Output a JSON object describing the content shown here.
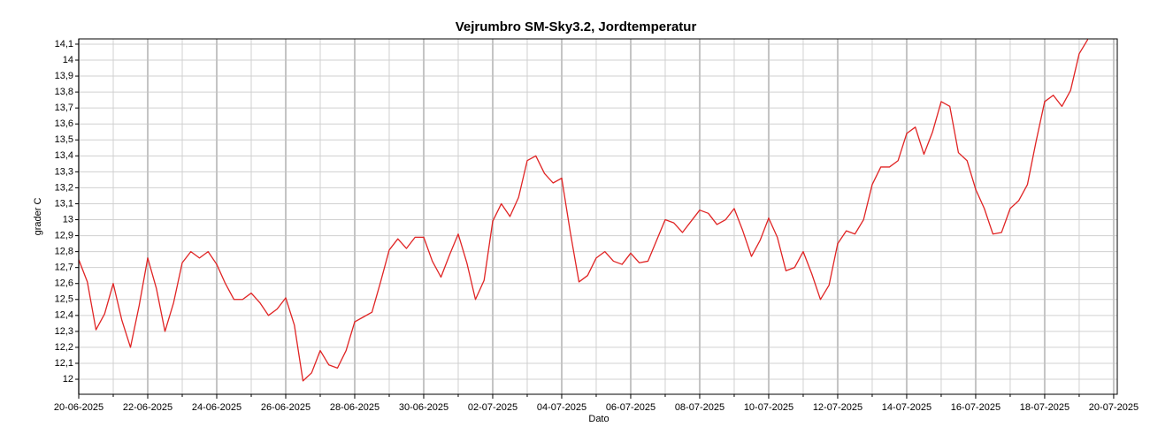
{
  "chart_data": {
    "type": "line",
    "title": "Vejrumbro SM-Sky3.2, Jordtemperatur",
    "x_label": "Dato",
    "y_label": "grader C",
    "x": [
      "2025-06-20 00:00",
      "2025-06-20 06:00",
      "2025-06-20 12:00",
      "2025-06-20 18:00",
      "2025-06-21 00:00",
      "2025-06-21 06:00",
      "2025-06-21 12:00",
      "2025-06-21 18:00",
      "2025-06-22 00:00",
      "2025-06-22 06:00",
      "2025-06-22 12:00",
      "2025-06-22 18:00",
      "2025-06-23 00:00",
      "2025-06-23 06:00",
      "2025-06-23 12:00",
      "2025-06-23 18:00",
      "2025-06-24 00:00",
      "2025-06-24 06:00",
      "2025-06-24 12:00",
      "2025-06-24 18:00",
      "2025-06-25 00:00",
      "2025-06-25 06:00",
      "2025-06-25 12:00",
      "2025-06-25 18:00",
      "2025-06-26 00:00",
      "2025-06-26 06:00",
      "2025-06-26 12:00",
      "2025-06-26 18:00",
      "2025-06-27 00:00",
      "2025-06-27 06:00",
      "2025-06-27 12:00",
      "2025-06-27 18:00",
      "2025-06-28 00:00",
      "2025-06-28 06:00",
      "2025-06-28 12:00",
      "2025-06-28 18:00",
      "2025-06-29 00:00",
      "2025-06-29 06:00",
      "2025-06-29 12:00",
      "2025-06-29 18:00",
      "2025-06-30 00:00",
      "2025-06-30 06:00",
      "2025-06-30 12:00",
      "2025-06-30 18:00",
      "2025-07-01 00:00",
      "2025-07-01 06:00",
      "2025-07-01 12:00",
      "2025-07-01 18:00",
      "2025-07-02 00:00",
      "2025-07-02 06:00",
      "2025-07-02 12:00",
      "2025-07-02 18:00",
      "2025-07-03 00:00",
      "2025-07-03 06:00",
      "2025-07-03 12:00",
      "2025-07-03 18:00",
      "2025-07-04 00:00",
      "2025-07-04 06:00",
      "2025-07-04 12:00",
      "2025-07-04 18:00",
      "2025-07-05 00:00",
      "2025-07-05 06:00",
      "2025-07-05 12:00",
      "2025-07-05 18:00",
      "2025-07-06 00:00",
      "2025-07-06 06:00",
      "2025-07-06 12:00",
      "2025-07-06 18:00",
      "2025-07-07 00:00",
      "2025-07-07 06:00",
      "2025-07-07 12:00",
      "2025-07-07 18:00",
      "2025-07-08 00:00",
      "2025-07-08 06:00",
      "2025-07-08 12:00",
      "2025-07-08 18:00",
      "2025-07-09 00:00",
      "2025-07-09 06:00",
      "2025-07-09 12:00",
      "2025-07-09 18:00",
      "2025-07-10 00:00",
      "2025-07-10 06:00",
      "2025-07-10 12:00",
      "2025-07-10 18:00",
      "2025-07-11 00:00",
      "2025-07-11 06:00",
      "2025-07-11 12:00",
      "2025-07-11 18:00",
      "2025-07-12 00:00",
      "2025-07-12 06:00",
      "2025-07-12 12:00",
      "2025-07-12 18:00",
      "2025-07-13 00:00",
      "2025-07-13 06:00",
      "2025-07-13 12:00",
      "2025-07-13 18:00",
      "2025-07-14 00:00",
      "2025-07-14 06:00",
      "2025-07-14 12:00",
      "2025-07-14 18:00",
      "2025-07-15 00:00",
      "2025-07-15 06:00",
      "2025-07-15 12:00",
      "2025-07-15 18:00",
      "2025-07-16 00:00",
      "2025-07-16 06:00",
      "2025-07-16 12:00",
      "2025-07-16 18:00",
      "2025-07-17 00:00",
      "2025-07-17 06:00",
      "2025-07-17 12:00",
      "2025-07-17 18:00",
      "2025-07-18 00:00",
      "2025-07-18 06:00",
      "2025-07-18 12:00",
      "2025-07-18 18:00",
      "2025-07-19 00:00",
      "2025-07-19 06:00"
    ],
    "series": [
      {
        "name": "Jordtemperatur",
        "color": "#e02424",
        "values": [
          12.75,
          12.61,
          12.31,
          12.41,
          12.6,
          12.37,
          12.2,
          12.46,
          12.76,
          12.57,
          12.3,
          12.48,
          12.73,
          12.8,
          12.76,
          12.8,
          12.72,
          12.6,
          12.5,
          12.5,
          12.54,
          12.48,
          12.4,
          12.44,
          12.51,
          12.34,
          11.99,
          12.04,
          12.18,
          12.09,
          12.07,
          12.18,
          12.36,
          12.39,
          12.42,
          12.61,
          12.81,
          12.88,
          12.82,
          12.89,
          12.89,
          12.74,
          12.64,
          12.78,
          12.91,
          12.73,
          12.5,
          12.62,
          12.99,
          13.1,
          13.02,
          13.14,
          13.37,
          13.4,
          13.29,
          13.23,
          13.26,
          12.92,
          12.61,
          12.65,
          12.76,
          12.8,
          12.74,
          12.72,
          12.79,
          12.73,
          12.74,
          12.87,
          13.0,
          12.98,
          12.92,
          12.99,
          13.06,
          13.04,
          12.97,
          13.0,
          13.07,
          12.93,
          12.77,
          12.87,
          13.01,
          12.89,
          12.68,
          12.7,
          12.8,
          12.66,
          12.5,
          12.59,
          12.85,
          12.93,
          12.91,
          13.0,
          13.22,
          13.33,
          13.33,
          13.37,
          13.54,
          13.58,
          13.41,
          13.55,
          13.74,
          13.71,
          13.42,
          13.37,
          13.19,
          13.07,
          12.91,
          12.92,
          13.07,
          13.12,
          13.22,
          13.49,
          13.74,
          13.78,
          13.71,
          13.81,
          14.04,
          14.13
        ]
      }
    ],
    "xlim": [
      "2025-06-20 00:00",
      "2025-07-20 02:30"
    ],
    "xticks": [
      {
        "value": "2025-06-20 00:00",
        "label": "20-06-2025"
      },
      {
        "value": "2025-06-22 00:00",
        "label": "22-06-2025"
      },
      {
        "value": "2025-06-24 00:00",
        "label": "24-06-2025"
      },
      {
        "value": "2025-06-26 00:00",
        "label": "26-06-2025"
      },
      {
        "value": "2025-06-28 00:00",
        "label": "28-06-2025"
      },
      {
        "value": "2025-06-30 00:00",
        "label": "30-06-2025"
      },
      {
        "value": "2025-07-02 00:00",
        "label": "02-07-2025"
      },
      {
        "value": "2025-07-04 00:00",
        "label": "04-07-2025"
      },
      {
        "value": "2025-07-06 00:00",
        "label": "06-07-2025"
      },
      {
        "value": "2025-07-08 00:00",
        "label": "08-07-2025"
      },
      {
        "value": "2025-07-10 00:00",
        "label": "10-07-2025"
      },
      {
        "value": "2025-07-12 00:00",
        "label": "12-07-2025"
      },
      {
        "value": "2025-07-14 00:00",
        "label": "14-07-2025"
      },
      {
        "value": "2025-07-16 00:00",
        "label": "16-07-2025"
      },
      {
        "value": "2025-07-18 00:00",
        "label": "18-07-2025"
      },
      {
        "value": "2025-07-20 00:00",
        "label": "20-07-2025"
      }
    ],
    "x_minor_ticks": [
      "2025-06-21 00:00",
      "2025-06-23 00:00",
      "2025-06-25 00:00",
      "2025-06-27 00:00",
      "2025-06-29 00:00",
      "2025-07-01 00:00",
      "2025-07-03 00:00",
      "2025-07-05 00:00",
      "2025-07-07 00:00",
      "2025-07-09 00:00",
      "2025-07-11 00:00",
      "2025-07-13 00:00",
      "2025-07-15 00:00",
      "2025-07-17 00:00",
      "2025-07-19 00:00"
    ],
    "ylim": [
      11.906,
      14.133
    ],
    "yticks": [
      12,
      {
        "value": 12.1,
        "label": "12,1"
      },
      {
        "value": 12.2,
        "label": "12,2"
      },
      {
        "value": 12.3,
        "label": "12,3"
      },
      {
        "value": 12.4,
        "label": "12,4"
      },
      {
        "value": 12.5,
        "label": "12,5"
      },
      {
        "value": 12.6,
        "label": "12,6"
      },
      {
        "value": 12.7,
        "label": "12,7"
      },
      {
        "value": 12.8,
        "label": "12,8"
      },
      {
        "value": 12.9,
        "label": "12,9"
      },
      13,
      {
        "value": 13.1,
        "label": "13,1"
      },
      {
        "value": 13.2,
        "label": "13,2"
      },
      {
        "value": 13.3,
        "label": "13,3"
      },
      {
        "value": 13.4,
        "label": "13,4"
      },
      {
        "value": 13.5,
        "label": "13,5"
      },
      {
        "value": 13.6,
        "label": "13,6"
      },
      {
        "value": 13.7,
        "label": "13,7"
      },
      {
        "value": 13.8,
        "label": "13,8"
      },
      {
        "value": 13.9,
        "label": "13,9"
      },
      14,
      {
        "value": 14.1,
        "label": "14,1"
      }
    ],
    "grid": true
  }
}
